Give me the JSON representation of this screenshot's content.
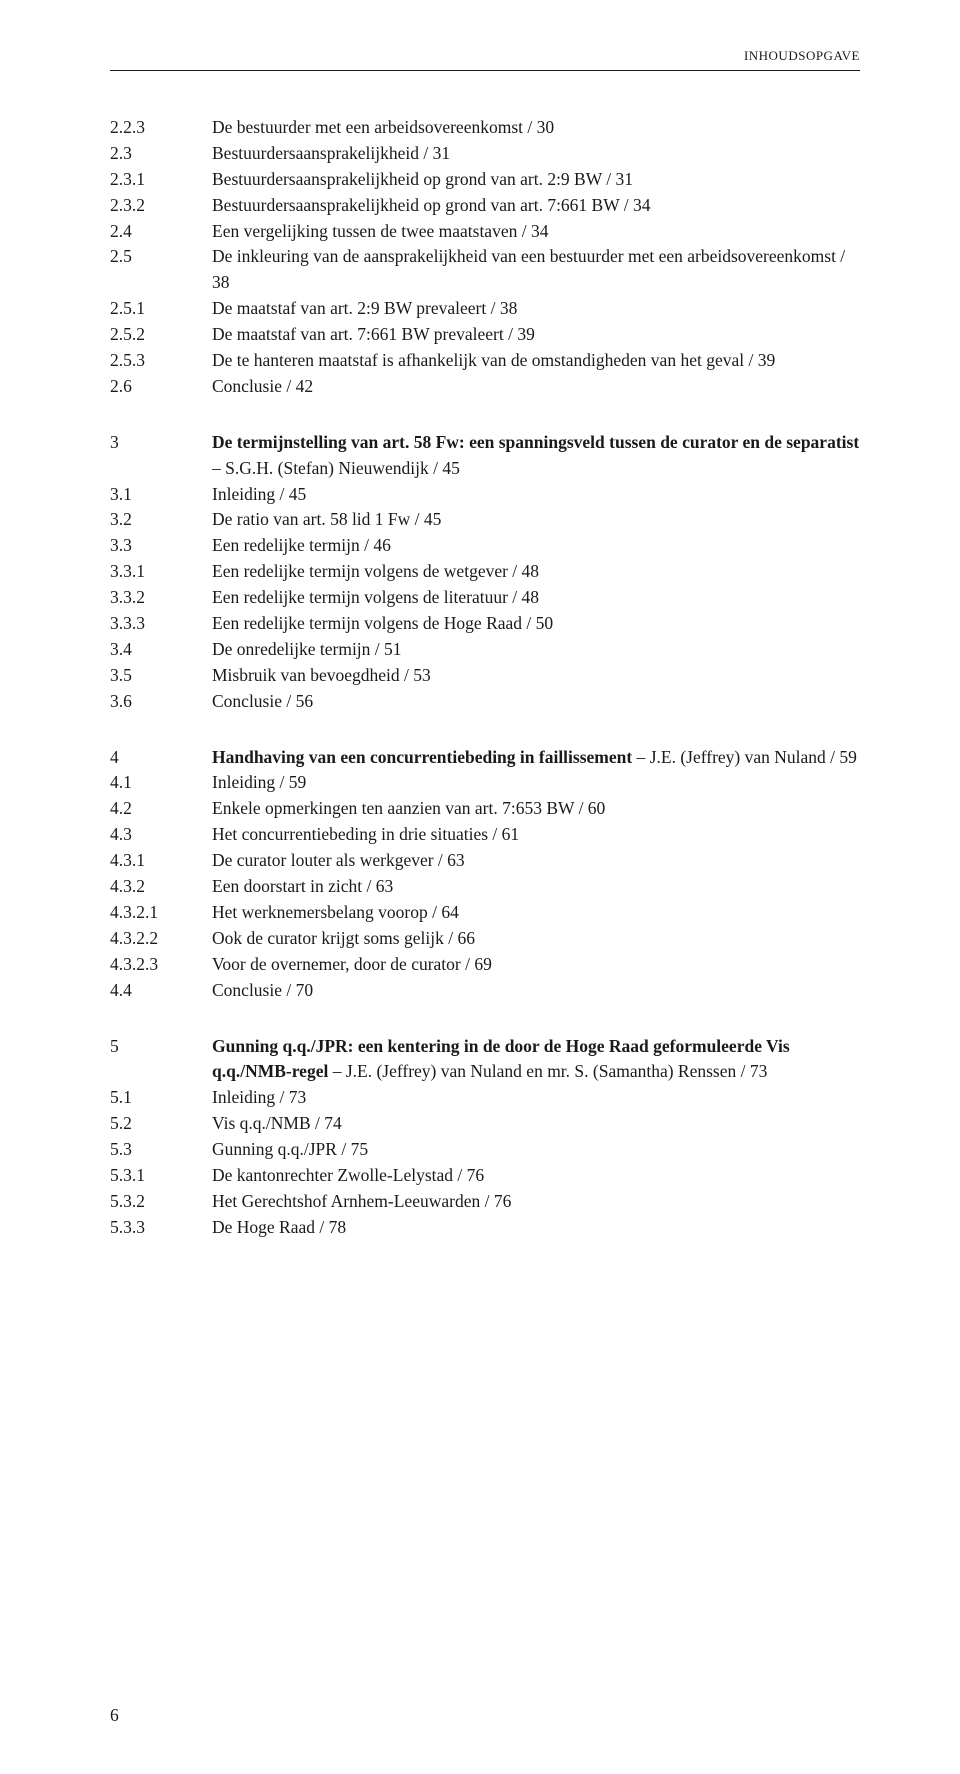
{
  "header": "INHOUDSOPGAVE",
  "page_number": "6",
  "sections": [
    {
      "rows": [
        {
          "num": "2.2.3",
          "text": "De bestuurder met een arbeidsovereenkomst / 30"
        },
        {
          "num": "2.3",
          "text": "Bestuurdersaansprakelijkheid / 31"
        },
        {
          "num": "2.3.1",
          "text": "Bestuurdersaansprakelijkheid op grond van art. 2:9 BW / 31"
        },
        {
          "num": "2.3.2",
          "text": "Bestuurdersaansprakelijkheid op grond van art. 7:661 BW / 34"
        },
        {
          "num": "2.4",
          "text": "Een vergelijking tussen de twee maatstaven / 34"
        },
        {
          "num": "2.5",
          "text": "De inkleuring van de aansprakelijkheid van een bestuurder met een arbeidsovereenkomst / 38"
        },
        {
          "num": "2.5.1",
          "text": "De maatstaf van art. 2:9 BW prevaleert / 38"
        },
        {
          "num": "2.5.2",
          "text": "De maatstaf van art. 7:661 BW prevaleert / 39"
        },
        {
          "num": "2.5.3",
          "text": "De te hanteren maatstaf is afhankelijk van de omstandigheden van het geval / 39"
        },
        {
          "num": "2.6",
          "text": "Conclusie / 42"
        }
      ]
    },
    {
      "rows": [
        {
          "num": "3",
          "text_before": "De termijnstelling van art. 58 Fw: een spanningsveld tussen de curator en de separatist",
          "text_after": " – S.G.H. (Stefan) Nieuwendijk / 45",
          "bold": true
        },
        {
          "num": "3.1",
          "text": "Inleiding / 45"
        },
        {
          "num": "3.2",
          "text": "De ratio van art. 58 lid 1 Fw / 45"
        },
        {
          "num": "3.3",
          "text": "Een redelijke termijn / 46"
        },
        {
          "num": "3.3.1",
          "text": "Een redelijke termijn volgens de wetgever / 48"
        },
        {
          "num": "3.3.2",
          "text": "Een redelijke termijn volgens de literatuur / 48"
        },
        {
          "num": "3.3.3",
          "text": "Een redelijke termijn volgens de Hoge Raad / 50"
        },
        {
          "num": "3.4",
          "text": "De onredelijke termijn / 51"
        },
        {
          "num": "3.5",
          "text": "Misbruik van bevoegdheid / 53"
        },
        {
          "num": "3.6",
          "text": "Conclusie / 56"
        }
      ]
    },
    {
      "rows": [
        {
          "num": "4",
          "text_before": "Handhaving van een concurrentiebeding in faillissement",
          "text_after": " – J.E. (Jeffrey) van Nuland / 59",
          "bold": true
        },
        {
          "num": "4.1",
          "text": "Inleiding / 59"
        },
        {
          "num": "4.2",
          "text": "Enkele opmerkingen ten aanzien van art. 7:653 BW / 60"
        },
        {
          "num": "4.3",
          "text": "Het concurrentiebeding in drie situaties / 61"
        },
        {
          "num": "4.3.1",
          "text": "De curator louter als werkgever / 63"
        },
        {
          "num": "4.3.2",
          "text": "Een doorstart in zicht / 63"
        },
        {
          "num": "4.3.2.1",
          "text": "Het werknemersbelang voorop / 64"
        },
        {
          "num": "4.3.2.2",
          "text": "Ook de curator krijgt soms gelijk / 66"
        },
        {
          "num": "4.3.2.3",
          "text": "Voor de overnemer, door de curator / 69"
        },
        {
          "num": "4.4",
          "text": "Conclusie / 70"
        }
      ]
    },
    {
      "rows": [
        {
          "num": "5",
          "text_before": "Gunning q.q./JPR: een kentering in de door de Hoge Raad geformuleerde Vis q.q./NMB-regel",
          "text_after": " – J.E. (Jeffrey) van Nuland en mr. S. (Samantha) Renssen / 73",
          "bold": true
        },
        {
          "num": "5.1",
          "text": "Inleiding / 73"
        },
        {
          "num": "5.2",
          "text": "Vis q.q./NMB / 74"
        },
        {
          "num": "5.3",
          "text": "Gunning q.q./JPR / 75"
        },
        {
          "num": "5.3.1",
          "text": "De kantonrechter Zwolle-Lelystad / 76"
        },
        {
          "num": "5.3.2",
          "text": "Het Gerechtshof Arnhem-Leeuwarden / 76"
        },
        {
          "num": "5.3.3",
          "text": "De Hoge Raad / 78"
        }
      ]
    }
  ]
}
